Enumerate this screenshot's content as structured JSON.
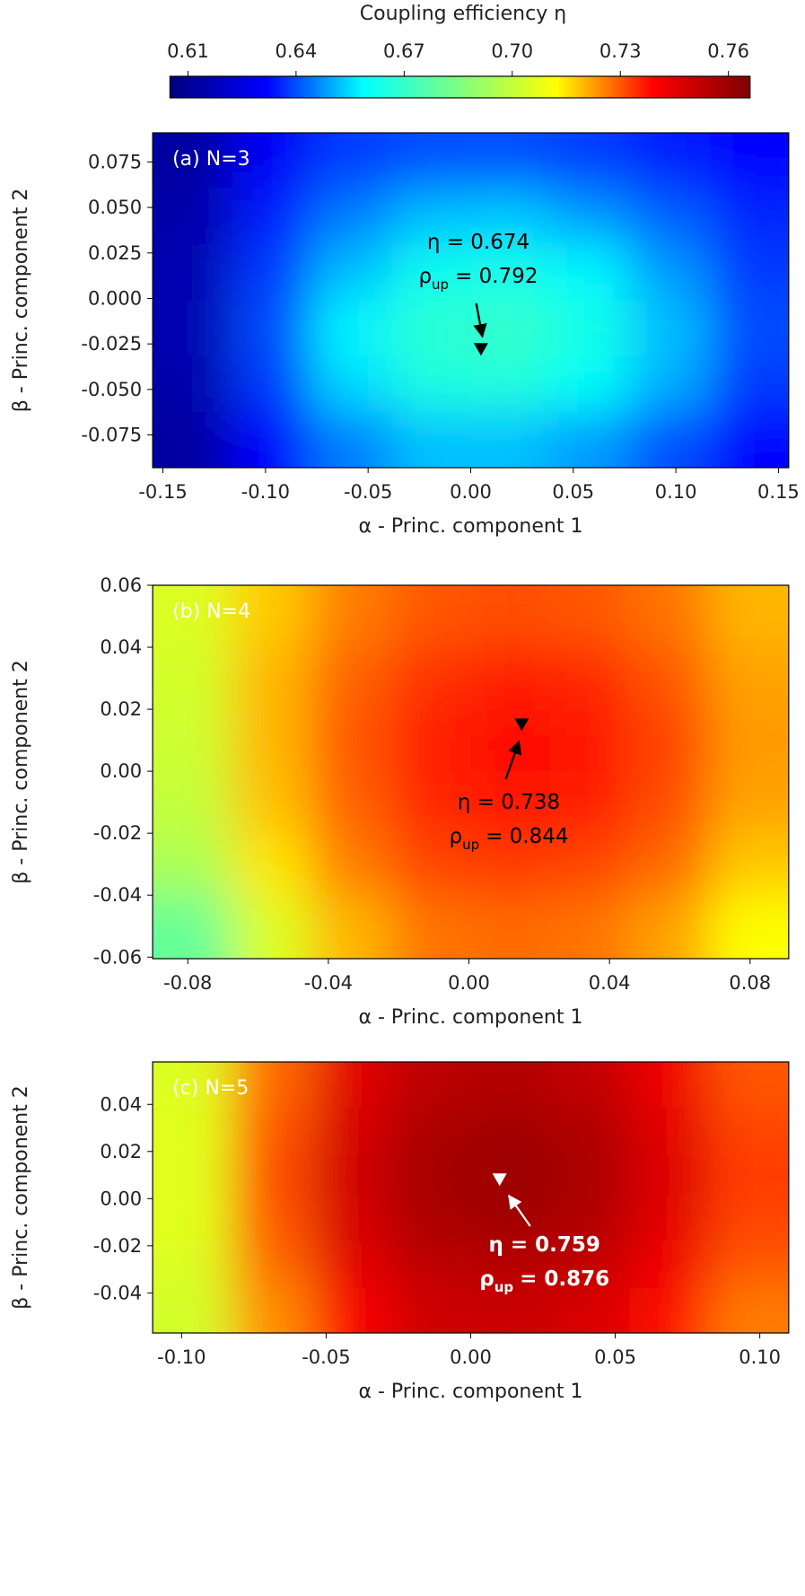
{
  "colorbar": {
    "label": "Coupling efficiency η",
    "lim": [
      0.605,
      0.766
    ],
    "ticks": [
      0.61,
      0.64,
      0.67,
      {
        "value": 0.7,
        "label": "0.70"
      },
      0.73,
      0.76
    ],
    "colormap": [
      "#00007f",
      "#0000ff",
      "#00ffff",
      "#7fff7f",
      "#ffff00",
      "#ff0000",
      "#7f0000"
    ]
  },
  "chart_data": [
    {
      "type": "heatmap",
      "title": "(a) N=3",
      "xlabel": "α - Princ. component 1",
      "ylabel": "β - Princ. component 2",
      "xlim": [
        -0.155,
        0.155
      ],
      "ylim": [
        -0.093,
        0.091
      ],
      "xticks": [
        -0.15,
        {
          "value": -0.1,
          "label": "-0.10"
        },
        -0.05,
        {
          "value": 0,
          "label": "0.00"
        },
        0.05,
        {
          "value": 0.1,
          "label": "0.10"
        },
        0.15
      ],
      "yticks": [
        0.075,
        {
          "value": 0.05,
          "label": "0.050"
        },
        0.025,
        {
          "value": 0,
          "label": "0.000"
        },
        -0.025,
        {
          "value": -0.05,
          "label": "-0.050"
        },
        -0.075
      ],
      "z": [
        [
          0.612,
          0.63,
          0.638,
          0.64,
          0.64,
          0.638,
          0.635,
          0.632
        ],
        [
          0.614,
          0.635,
          0.645,
          0.652,
          0.653,
          0.648,
          0.642,
          0.636
        ],
        [
          0.615,
          0.638,
          0.652,
          0.662,
          0.663,
          0.658,
          0.648,
          0.638
        ],
        [
          0.615,
          0.64,
          0.658,
          0.668,
          0.67,
          0.664,
          0.652,
          0.64
        ],
        [
          0.614,
          0.638,
          0.655,
          0.665,
          0.666,
          0.66,
          0.65,
          0.638
        ],
        [
          0.612,
          0.632,
          0.645,
          0.652,
          0.652,
          0.648,
          0.64,
          0.632
        ]
      ],
      "marker": {
        "x": 0.005,
        "y": -0.028
      },
      "annotation_color": "#000000",
      "annotation": {
        "eta": "η = 0.674",
        "rho": "ρ",
        "rho_sub": "up",
        "rho_value": "= 0.792"
      }
    },
    {
      "type": "heatmap",
      "title": "(b) N=4",
      "xlabel": "α - Princ. component 1",
      "ylabel": "β - Princ. component 2",
      "xlim": [
        -0.09,
        0.091
      ],
      "ylim": [
        -0.0605,
        0.06
      ],
      "xticks": [
        -0.08,
        -0.04,
        {
          "value": 0,
          "label": "0.00"
        },
        0.04,
        0.08
      ],
      "yticks": [
        0.06,
        0.04,
        0.02,
        {
          "value": 0,
          "label": "0.00"
        },
        -0.02,
        -0.04,
        -0.06
      ],
      "z": [
        [
          0.705,
          0.718,
          0.726,
          0.73,
          0.731,
          0.73,
          0.727,
          0.72
        ],
        [
          0.703,
          0.72,
          0.729,
          0.734,
          0.736,
          0.735,
          0.73,
          0.722
        ],
        [
          0.702,
          0.72,
          0.73,
          0.736,
          0.738,
          0.737,
          0.732,
          0.723
        ],
        [
          0.7,
          0.719,
          0.729,
          0.735,
          0.737,
          0.736,
          0.731,
          0.722
        ],
        [
          0.695,
          0.715,
          0.726,
          0.732,
          0.733,
          0.732,
          0.728,
          0.718
        ],
        [
          0.68,
          0.705,
          0.72,
          0.727,
          0.728,
          0.727,
          0.722,
          0.712
        ]
      ],
      "marker": {
        "x": 0.015,
        "y": 0.015
      },
      "annotation_color": "#000000",
      "annotation": {
        "eta": "η = 0.738",
        "rho": "ρ",
        "rho_sub": "up",
        "rho_value": "= 0.844"
      }
    },
    {
      "type": "heatmap",
      "title": "(c) N=5",
      "xlabel": "α - Princ. component 1",
      "ylabel": "β - Princ. component 2",
      "xlim": [
        -0.11,
        0.11
      ],
      "ylim": [
        -0.057,
        0.058
      ],
      "xticks": [
        {
          "value": -0.1,
          "label": "-0.10"
        },
        -0.05,
        {
          "value": 0,
          "label": "0.00"
        },
        0.05,
        {
          "value": 0.1,
          "label": "0.10"
        }
      ],
      "yticks": [
        0.04,
        0.02,
        {
          "value": 0,
          "label": "0.00"
        },
        -0.02,
        -0.04
      ],
      "z": [
        [
          0.705,
          0.728,
          0.745,
          0.753,
          0.755,
          0.752,
          0.742,
          0.73
        ],
        [
          0.706,
          0.73,
          0.748,
          0.757,
          0.759,
          0.756,
          0.745,
          0.732
        ],
        [
          0.706,
          0.731,
          0.749,
          0.758,
          0.76,
          0.757,
          0.746,
          0.733
        ],
        [
          0.706,
          0.73,
          0.748,
          0.757,
          0.759,
          0.756,
          0.745,
          0.732
        ],
        [
          0.705,
          0.728,
          0.745,
          0.753,
          0.755,
          0.752,
          0.742,
          0.73
        ],
        [
          0.703,
          0.724,
          0.74,
          0.749,
          0.75,
          0.747,
          0.738,
          0.726
        ]
      ],
      "marker": {
        "x": 0.01,
        "y": 0.008
      },
      "annotation_color": "#ffffff",
      "annotation": {
        "eta": "η = 0.759",
        "rho": "ρ",
        "rho_sub": "up",
        "rho_value": "= 0.876"
      }
    }
  ]
}
